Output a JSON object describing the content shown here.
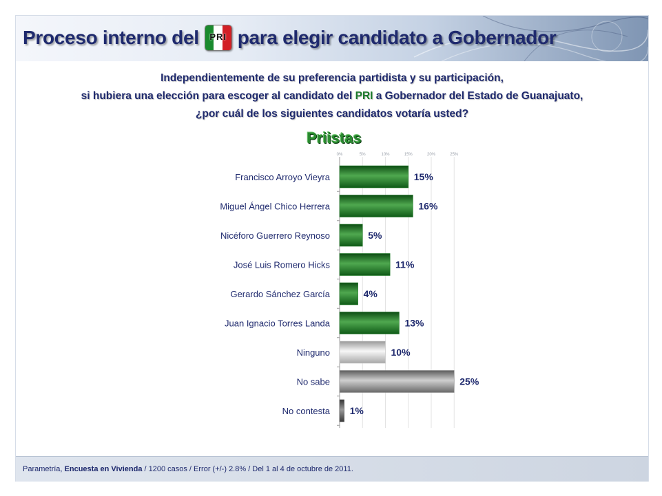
{
  "header": {
    "title_before": "Proceso interno del",
    "logo_text": "PRI",
    "title_after": "para elegir candidato a Gobernador"
  },
  "question": {
    "line1": "Independientemente de su preferencia partidista y su participación,",
    "line2_before": "si hubiera una elección para escoger al candidato del ",
    "line2_party": "PRI",
    "line2_after": " a Gobernador del Estado de Guanajuato,",
    "line3": "¿por cuál de los siguientes candidatos votaría usted?"
  },
  "chart_data": {
    "type": "bar",
    "orientation": "horizontal",
    "title": "Priistas",
    "categories": [
      "Francisco Arroyo Vieyra",
      "Miguel Ángel Chico Herrera",
      "Nicéforo Guerrero Reynoso",
      "José Luis Romero Hicks",
      "Gerardo Sánchez García",
      "Juan Ignacio Torres Landa",
      "Ninguno",
      "No sabe",
      "No contesta"
    ],
    "values": [
      15,
      16,
      5,
      11,
      4,
      13,
      10,
      25,
      1
    ],
    "value_labels": [
      "15%",
      "16%",
      "5%",
      "11%",
      "4%",
      "13%",
      "10%",
      "25%",
      "1%"
    ],
    "bar_styles": [
      "green",
      "green",
      "green",
      "green",
      "green",
      "green",
      "light-gray",
      "gray",
      "dark-gray"
    ],
    "xlim": [
      0,
      25
    ],
    "x_ticks": [
      0,
      5,
      10,
      15,
      20,
      25
    ],
    "x_tick_labels": [
      "0%",
      "5%",
      "10%",
      "15%",
      "20%",
      "25%"
    ],
    "grid": true,
    "colors": {
      "green": "#1f7a26",
      "light-gray": "#c8c8c8",
      "gray": "#8a8a8a",
      "dark-gray": "#555555"
    }
  },
  "footer": {
    "source": "Parametría,",
    "survey": "Encuesta en Vivienda",
    "details": "/ 1200 casos / Error (+/-) 2.8% / Del 1 al 4 de octubre de 2011."
  }
}
